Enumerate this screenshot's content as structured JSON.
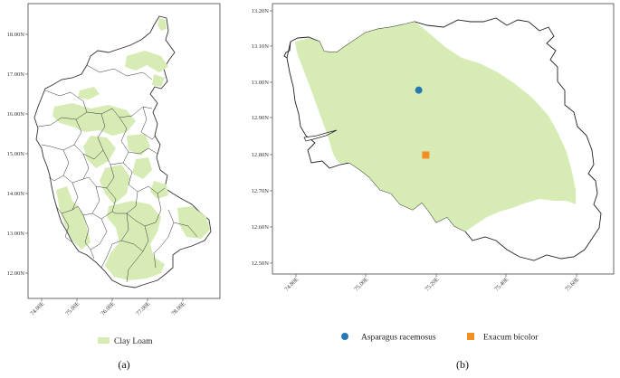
{
  "panel_a": {
    "y_ticks": [
      "18.00N",
      "17.00N",
      "16.00N",
      "15.00N",
      "14.00N",
      "13.00N",
      "12.00N"
    ],
    "x_ticks": [
      "74.00E",
      "75.00E",
      "76.00E",
      "77.00E",
      "78.00E"
    ],
    "legend": {
      "label": "Clay Loam",
      "color": "#d6ecb4"
    },
    "caption": "(a)"
  },
  "panel_b": {
    "y_ticks": [
      "13.20N",
      "13.10N",
      "13.00N",
      "12.90N",
      "12.80N",
      "12.70N",
      "12.60N",
      "12.50N"
    ],
    "x_ticks": [
      "74.80E",
      "75.00E",
      "75.20E",
      "75.40E",
      "75.60E"
    ],
    "region_color": "#d6ecb4",
    "points": [
      {
        "name": "Asparagus racemosus",
        "lon": 75.15,
        "lat": 12.98,
        "marker": "circle",
        "color": "#2878b4"
      },
      {
        "name": "Exacum bicolor",
        "lon": 75.17,
        "lat": 12.8,
        "marker": "square",
        "color": "#f28e22"
      }
    ],
    "caption": "(b)"
  }
}
